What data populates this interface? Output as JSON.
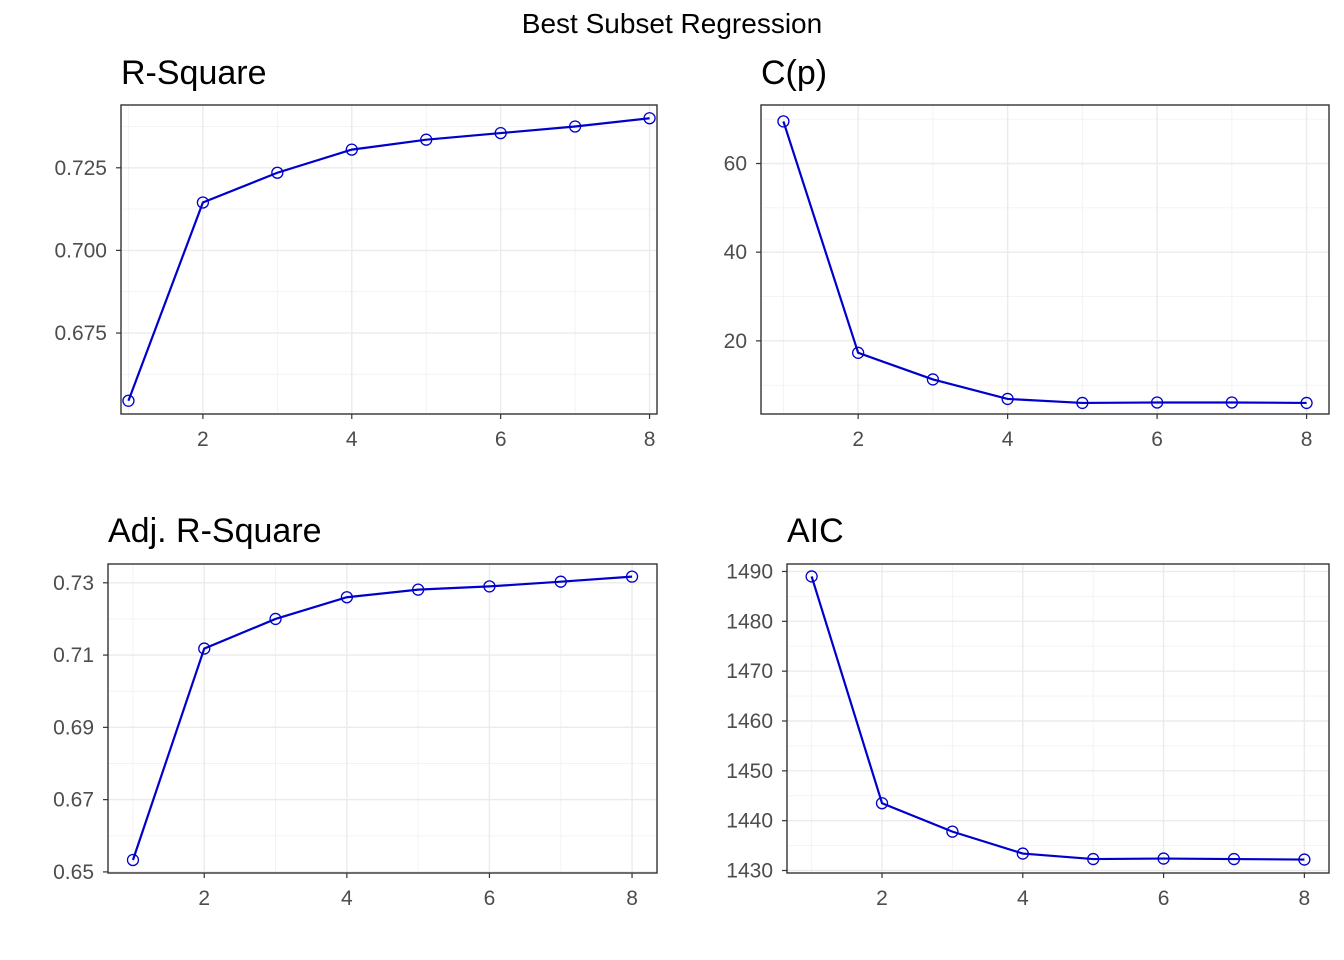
{
  "figure": {
    "title": "Best Subset Regression"
  },
  "chart_data": [
    {
      "type": "line",
      "title": "R-Square",
      "xlabel": "",
      "ylabel": "",
      "x": [
        1,
        2,
        3,
        4,
        5,
        6,
        7,
        8
      ],
      "values": [
        0.6545,
        0.7145,
        0.7235,
        0.7305,
        0.7335,
        0.7355,
        0.7375,
        0.74
      ],
      "xlim": [
        0.9,
        8.1
      ],
      "ylim": [
        0.6505,
        0.744
      ],
      "xticks": [
        2,
        4,
        6,
        8
      ],
      "yticks": [
        0.675,
        0.7,
        0.725
      ],
      "ytick_labels": [
        "0.675",
        "0.700",
        "0.725"
      ],
      "grid": true,
      "line_color": "#0000cd"
    },
    {
      "type": "line",
      "title": "C(p)",
      "xlabel": "",
      "ylabel": "",
      "x": [
        1,
        2,
        3,
        4,
        5,
        6,
        7,
        8
      ],
      "values": [
        69.5,
        17.3,
        11.3,
        6.9,
        6.0,
        6.1,
        6.1,
        6.0
      ],
      "xlim": [
        0.7,
        8.3
      ],
      "ylim": [
        3.5,
        73.2
      ],
      "xticks": [
        2,
        4,
        6,
        8
      ],
      "yticks": [
        20,
        40,
        60
      ],
      "ytick_labels": [
        "20",
        "40",
        "60"
      ],
      "grid": true,
      "line_color": "#0000cd"
    },
    {
      "type": "line",
      "title": "Adj. R-Square",
      "xlabel": "",
      "ylabel": "",
      "x": [
        1,
        2,
        3,
        4,
        5,
        6,
        7,
        8
      ],
      "values": [
        0.6533,
        0.7118,
        0.72,
        0.726,
        0.7281,
        0.729,
        0.7303,
        0.7317
      ],
      "xlim": [
        0.65,
        8.35
      ],
      "ylim": [
        0.6497,
        0.7352
      ],
      "xticks": [
        2,
        4,
        6,
        8
      ],
      "yticks": [
        0.65,
        0.67,
        0.69,
        0.71,
        0.73
      ],
      "ytick_labels": [
        "0.65",
        "0.67",
        "0.69",
        "0.71",
        "0.73"
      ],
      "grid": true,
      "line_color": "#0000cd"
    },
    {
      "type": "line",
      "title": "AIC",
      "xlabel": "",
      "ylabel": "",
      "x": [
        1,
        2,
        3,
        4,
        5,
        6,
        7,
        8
      ],
      "values": [
        1489.0,
        1443.5,
        1437.8,
        1433.4,
        1432.3,
        1432.4,
        1432.3,
        1432.2
      ],
      "xlim": [
        0.65,
        8.35
      ],
      "ylim": [
        1429.5,
        1491.5
      ],
      "xticks": [
        2,
        4,
        6,
        8
      ],
      "yticks": [
        1430,
        1440,
        1450,
        1460,
        1470,
        1480,
        1490
      ],
      "ytick_labels": [
        "1430",
        "1440",
        "1450",
        "1460",
        "1470",
        "1480",
        "1490"
      ],
      "grid": true,
      "line_color": "#0000cd"
    }
  ]
}
